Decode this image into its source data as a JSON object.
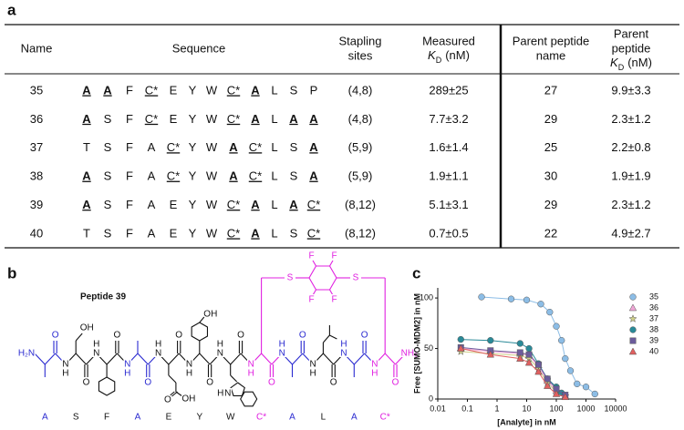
{
  "panels": {
    "a": "a",
    "b": "b",
    "c": "c"
  },
  "table": {
    "headers": {
      "name": "Name",
      "sequence": "Sequence",
      "stapling": [
        "Stapling",
        "sites"
      ],
      "measured": {
        "lines": [
          "Measured"
        ],
        "k": "K",
        "sub": "D",
        "unit": "(nM)"
      },
      "parent_name": [
        "Parent peptide",
        "name"
      ],
      "parent_kd": {
        "lines": [
          "Parent",
          "peptide"
        ],
        "k": "K",
        "sub": "D",
        "unit": "(nM)"
      }
    },
    "rows": [
      {
        "name": "35",
        "sequence": [
          "A",
          "A",
          "F",
          "C*",
          "E",
          "Y",
          "W",
          "C*",
          "A",
          "L",
          "S",
          "P"
        ],
        "emphasis": [
          "bold",
          "bold",
          "plain",
          "underline",
          "plain",
          "plain",
          "plain",
          "underline",
          "bold",
          "plain",
          "plain",
          "plain"
        ],
        "stapling": "(4,8)",
        "measured": "289±25",
        "parent": "27",
        "parent_kd": "9.9±3.3"
      },
      {
        "name": "36",
        "sequence": [
          "A",
          "S",
          "F",
          "C*",
          "E",
          "Y",
          "W",
          "C*",
          "A",
          "L",
          "A",
          "A"
        ],
        "emphasis": [
          "bold",
          "plain",
          "plain",
          "underline",
          "plain",
          "plain",
          "plain",
          "underline",
          "bold",
          "plain",
          "bold",
          "bold"
        ],
        "stapling": "(4,8)",
        "measured": "7.7±3.2",
        "parent": "29",
        "parent_kd": "2.3±1.2"
      },
      {
        "name": "37",
        "sequence": [
          "T",
          "S",
          "F",
          "A",
          "C*",
          "Y",
          "W",
          "A",
          "C*",
          "L",
          "S",
          "A"
        ],
        "emphasis": [
          "plain",
          "plain",
          "plain",
          "plain",
          "underline",
          "plain",
          "plain",
          "bold",
          "underline",
          "plain",
          "plain",
          "bold"
        ],
        "stapling": "(5,9)",
        "measured": "1.6±1.4",
        "parent": "25",
        "parent_kd": "2.2±0.8"
      },
      {
        "name": "38",
        "sequence": [
          "A",
          "S",
          "F",
          "A",
          "C*",
          "Y",
          "W",
          "A",
          "C*",
          "L",
          "S",
          "A"
        ],
        "emphasis": [
          "bold",
          "plain",
          "plain",
          "plain",
          "underline",
          "plain",
          "plain",
          "bold",
          "underline",
          "plain",
          "plain",
          "bold"
        ],
        "stapling": "(5,9)",
        "measured": "1.9±1.1",
        "parent": "30",
        "parent_kd": "1.9±1.9"
      },
      {
        "name": "39",
        "sequence": [
          "A",
          "S",
          "F",
          "A",
          "E",
          "Y",
          "W",
          "C*",
          "A",
          "L",
          "A",
          "C*"
        ],
        "emphasis": [
          "bold",
          "plain",
          "plain",
          "plain",
          "plain",
          "plain",
          "plain",
          "underline",
          "bold",
          "plain",
          "bold",
          "underline"
        ],
        "stapling": "(8,12)",
        "measured": "5.1±3.1",
        "parent": "29",
        "parent_kd": "2.3±1.2"
      },
      {
        "name": "40",
        "sequence": [
          "T",
          "S",
          "F",
          "A",
          "E",
          "Y",
          "W",
          "C*",
          "A",
          "L",
          "S",
          "C*"
        ],
        "emphasis": [
          "plain",
          "plain",
          "plain",
          "plain",
          "plain",
          "plain",
          "plain",
          "underline",
          "bold",
          "plain",
          "plain",
          "underline"
        ],
        "stapling": "(8,12)",
        "measured": "0.7±0.5",
        "parent": "22",
        "parent_kd": "4.9±2.7"
      }
    ]
  },
  "structure": {
    "title": "Peptide 39",
    "residues": [
      "A",
      "S",
      "F",
      "A",
      "E",
      "Y",
      "W",
      "C*",
      "A",
      "L",
      "A",
      "C*"
    ],
    "residue_colors": [
      "#2a2ad0",
      "#111",
      "#111",
      "#2a2ad0",
      "#111",
      "#111",
      "#111",
      "#e020e0",
      "#2a2ad0",
      "#111",
      "#2a2ad0",
      "#e020e0"
    ],
    "n_terminus": "H₂N",
    "c_terminus": "NH₂",
    "hydroxyl": "OH",
    "carbonyl": "O",
    "amide_n": "N",
    "amide_h": "H",
    "thioether": "S",
    "fluorine": "F"
  },
  "chart_data": {
    "type": "scatter",
    "xlabel": "[Analyte] in nM",
    "ylabel": "Free [SUMO-MDM2] in nM",
    "xscale": "log",
    "xlim": [
      0.01,
      10000
    ],
    "xticks": [
      0.01,
      0.1,
      1,
      10,
      100,
      1000,
      10000
    ],
    "ylim": [
      0,
      110
    ],
    "yticks": [
      0,
      50,
      100
    ],
    "legend": "right",
    "connect": true,
    "series": [
      {
        "name": "35",
        "color": "#8cbde6",
        "marker": "circle",
        "x": [
          0.3,
          3,
          10,
          30,
          60,
          100,
          150,
          200,
          300,
          500,
          1000,
          2000
        ],
        "values": [
          101,
          99,
          98,
          94,
          86,
          72,
          58,
          40,
          28,
          15,
          12,
          5
        ]
      },
      {
        "name": "36",
        "color": "#f0a6d6",
        "marker": "triangle",
        "x": [
          0.06,
          0.6,
          6,
          12,
          25,
          50,
          100,
          200
        ],
        "values": [
          50,
          47,
          45,
          43,
          32,
          18,
          8,
          3
        ]
      },
      {
        "name": "37",
        "color": "#cfd08a",
        "marker": "star",
        "x": [
          0.06,
          0.6,
          6,
          12,
          25,
          50,
          100,
          200
        ],
        "values": [
          47,
          45,
          43,
          40,
          30,
          16,
          7,
          3
        ]
      },
      {
        "name": "38",
        "color": "#2a8a98",
        "marker": "circle",
        "x": [
          0.06,
          0.6,
          6,
          12,
          25,
          50,
          100,
          150
        ],
        "values": [
          59,
          58,
          55,
          50,
          35,
          20,
          12,
          6
        ]
      },
      {
        "name": "39",
        "color": "#6c5c9c",
        "marker": "square",
        "x": [
          0.06,
          0.6,
          6,
          12,
          25,
          50,
          100,
          200
        ],
        "values": [
          51,
          48,
          46,
          44,
          34,
          20,
          10,
          4
        ]
      },
      {
        "name": "40",
        "color": "#e06060",
        "marker": "triangle",
        "x": [
          0.06,
          0.6,
          6,
          12,
          25,
          50,
          100,
          200
        ],
        "values": [
          50,
          44,
          40,
          36,
          27,
          13,
          5,
          2
        ]
      }
    ]
  }
}
